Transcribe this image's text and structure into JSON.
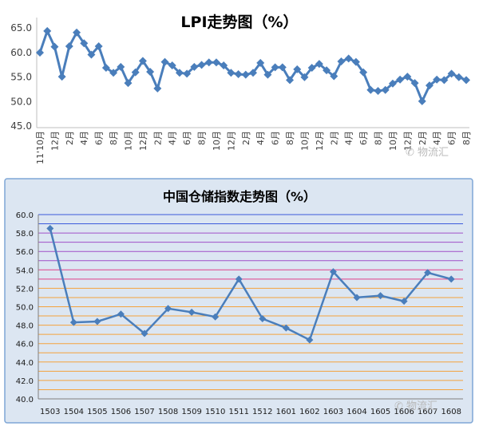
{
  "colors": {
    "line1": "#4a7ebb",
    "line2": "#4a7ebb",
    "panel2_bg": "#dce6f2",
    "panel2_border": "#7ea6d6",
    "grid_orange": "#f4a23c",
    "grid_purple": "#a04fc8",
    "grid_pink": "#e0408a",
    "grid_blue": "#3b5bdb"
  },
  "watermark": {
    "icon": "wechat-icon",
    "text1": "物流汇",
    "text2": "物流汇"
  },
  "chart_data": [
    {
      "type": "line",
      "title": "LPI走势图（%）",
      "ylim": [
        45,
        65
      ],
      "yticks": [
        "65.0",
        "60.0",
        "55.0",
        "50.0",
        "45.0"
      ],
      "ytick_values": [
        65,
        60,
        55,
        50,
        45
      ],
      "xtick_labels": [
        "11'10月",
        "12月",
        "2月",
        "4月",
        "6月",
        "8月",
        "10月",
        "12月",
        "2月",
        "4月",
        "6月",
        "8月",
        "10月",
        "12月",
        "2月",
        "4月",
        "6月",
        "8月",
        "10月",
        "12月",
        "2月",
        "4月",
        "6月",
        "8月",
        "10月",
        "12月",
        "2月",
        "4月",
        "6月",
        "8月"
      ],
      "values": [
        59.8,
        64.2,
        61.0,
        54.9,
        61.1,
        63.9,
        61.7,
        59.4,
        61.1,
        56.7,
        55.7,
        56.9,
        53.6,
        55.8,
        58.1,
        55.9,
        52.5,
        57.9,
        57.2,
        55.7,
        55.5,
        56.9,
        57.3,
        57.8,
        57.8,
        57.2,
        55.7,
        55.4,
        55.3,
        55.7,
        57.7,
        55.3,
        56.8,
        56.8,
        54.2,
        56.4,
        54.8,
        56.7,
        57.5,
        56.2,
        55.0,
        58.0,
        58.6,
        57.9,
        55.8,
        52.2,
        52.0,
        52.2,
        53.5,
        54.3,
        54.9,
        53.6,
        49.9,
        53.1,
        54.3,
        54.2,
        55.5,
        54.8,
        54.2
      ],
      "grid": false
    },
    {
      "type": "line",
      "title": "中国仓储指数走势图（%）",
      "ylim": [
        40,
        60
      ],
      "yticks": [
        "60.0",
        "58.0",
        "56.0",
        "54.0",
        "52.0",
        "50.0",
        "48.0",
        "46.0",
        "44.0",
        "42.0",
        "40.0"
      ],
      "ytick_values": [
        60,
        58,
        56,
        54,
        52,
        50,
        48,
        46,
        44,
        42,
        40
      ],
      "categories": [
        "1503",
        "1504",
        "1505",
        "1506",
        "1507",
        "1508",
        "1509",
        "1510",
        "1511",
        "1512",
        "1601",
        "1602",
        "1603",
        "1604",
        "1605",
        "1606",
        "1607",
        "1608"
      ],
      "values": [
        58.5,
        48.3,
        48.4,
        49.2,
        47.1,
        49.8,
        49.4,
        48.9,
        53.0,
        48.7,
        47.7,
        46.4,
        53.8,
        51.0,
        51.2,
        50.6,
        53.7,
        53.0
      ],
      "grid": true
    }
  ]
}
